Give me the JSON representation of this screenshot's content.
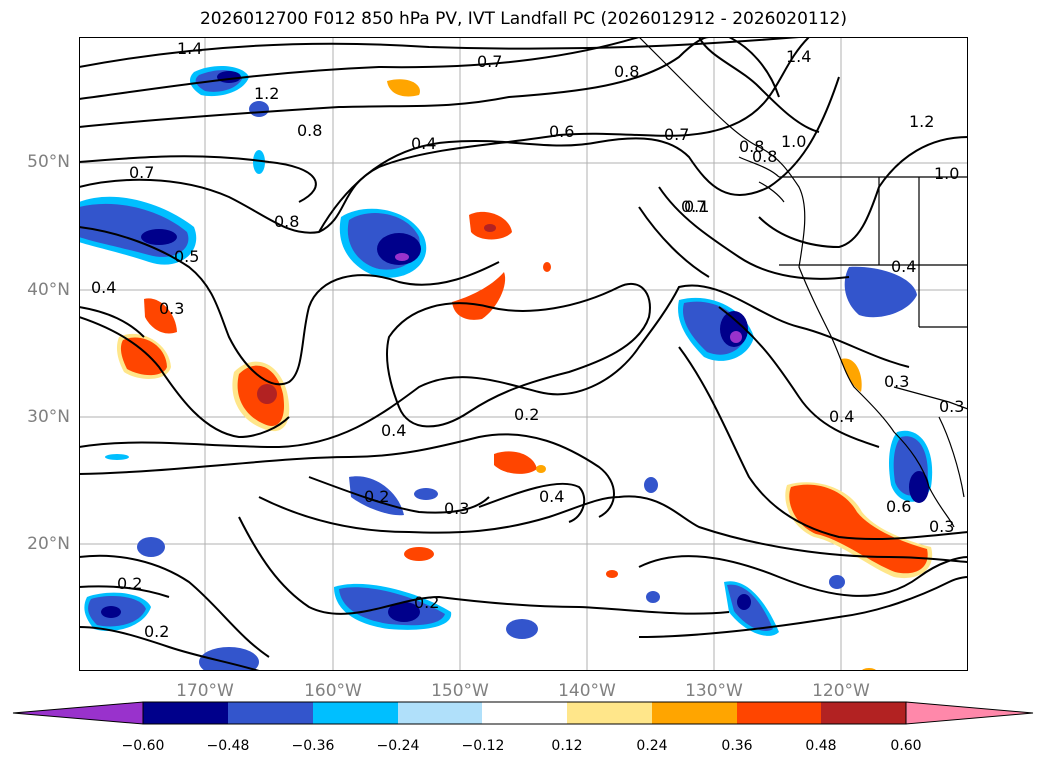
{
  "title": "2026012700 F012 850 hPa PV, IVT Landfall PC (2026012912 - 2026020112)",
  "lat_ticks": [
    "50°N",
    "40°N",
    "30°N",
    "20°N"
  ],
  "lon_ticks": [
    "170°W",
    "160°W",
    "150°W",
    "140°W",
    "130°W",
    "120°W"
  ],
  "contour_labels": [
    "1.4",
    "1.2",
    "0.8",
    "0.7",
    "0.4",
    "0.6",
    "0.7",
    "0.8",
    "1.4",
    "1.2",
    "1.0",
    "1.0",
    "0.7",
    "0.8",
    "0.7",
    "0.8",
    "0.5",
    "0.4",
    "0.3",
    "0.4",
    "0.2",
    "0.4",
    "0.4",
    "0.3",
    "0.2",
    "0.3",
    "0.2",
    "0.2",
    "0.2",
    "0.6",
    "0.4",
    "0.3",
    "0.3",
    "0.8",
    "0.1"
  ],
  "colorbar": {
    "ticks": [
      "−0.60",
      "−0.48",
      "−0.36",
      "−0.24",
      "−0.12",
      "0.12",
      "0.24",
      "0.36",
      "0.48",
      "0.60"
    ],
    "colors": [
      "#9932cc",
      "#00008b",
      "#3355cc",
      "#00bfff",
      "#b0e0fa",
      "#ffffff",
      "#ffe68a",
      "#ffa500",
      "#ff4500",
      "#b22222",
      "#ff88aa"
    ]
  },
  "map_data": {
    "projection": "equirectangular",
    "lon_range": [
      -180,
      -110
    ],
    "lat_range": [
      10,
      60
    ],
    "variables": [
      "850 hPa PV (contours)",
      "IVT Landfall PC (shaded)"
    ],
    "grid": true
  }
}
